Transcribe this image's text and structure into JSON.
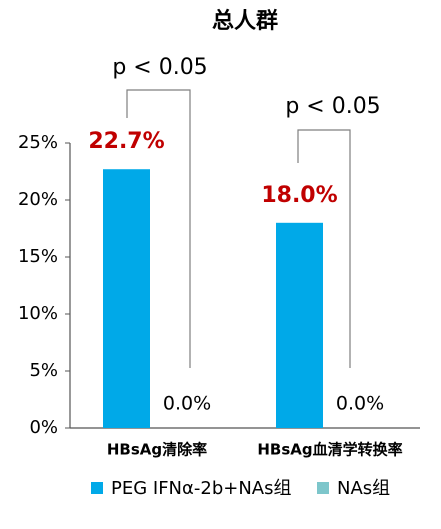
{
  "chart_data": {
    "type": "bar",
    "title": "总人群",
    "categories": [
      "HBsAg清除率",
      "HBsAg血清学转换率"
    ],
    "series": [
      {
        "name": "PEG IFNα-2b+NAs组",
        "color": "#00a9e8",
        "values": [
          22.7,
          18.0
        ],
        "value_labels": [
          "22.7%",
          "18.0%"
        ]
      },
      {
        "name": "NAs组",
        "color": "#7dc6cb",
        "values": [
          0.0,
          0.0
        ],
        "value_labels": [
          "0.0%",
          "0.0%"
        ]
      }
    ],
    "annotations": [
      "p < 0.05",
      "p < 0.05"
    ],
    "ylim": [
      0,
      25
    ],
    "yticks": [
      {
        "value": 0,
        "label": "0%"
      },
      {
        "value": 5,
        "label": "5%"
      },
      {
        "value": 10,
        "label": "10%"
      },
      {
        "value": 15,
        "label": "15%"
      },
      {
        "value": 20,
        "label": "20%"
      },
      {
        "value": 25,
        "label": "25%"
      }
    ],
    "legend": "bottom"
  }
}
